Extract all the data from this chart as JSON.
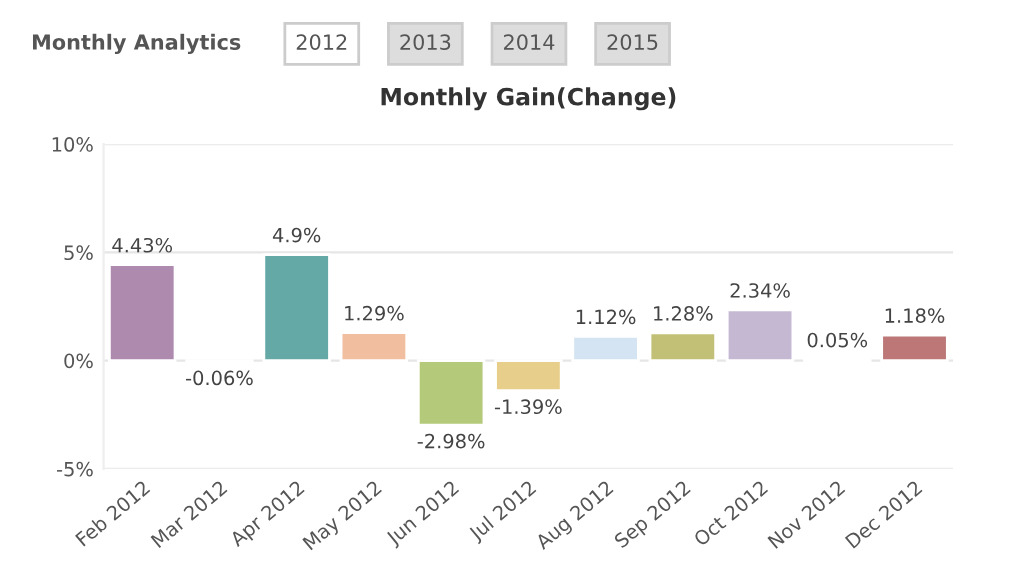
{
  "chart_data": {
    "type": "bar",
    "title": "Monthly Gain(Change)",
    "annotations": [
      "Monthly Analytics",
      "2012",
      "2013",
      "2014",
      "2015"
    ],
    "categories": [
      "Feb 2012",
      "Mar 2012",
      "Apr 2012",
      "May 2012",
      "Jun 2012",
      "Jul 2012",
      "Aug 2012",
      "Sep 2012",
      "Oct 2012",
      "Nov 2012",
      "Dec 2012"
    ],
    "values": [
      4.43,
      -0.06,
      4.9,
      1.29,
      -2.98,
      -1.39,
      1.12,
      1.28,
      2.34,
      0.05,
      1.18
    ],
    "value_labels": [
      "4.43%",
      "-0.06%",
      "4.9%",
      "1.29%",
      "-2.98%",
      "-1.39%",
      "1.12%",
      "1.28%",
      "2.34%",
      "0.05%",
      "1.18%"
    ],
    "colors": [
      "#b384b4",
      "#9a9a9a",
      "#5ab4b2",
      "#ffbb92",
      "#bad66c",
      "#f7d57a",
      "#cfe4f7",
      "#cfcc6a",
      "#c3b3d8",
      "#8a8a6a",
      "#c96b6b"
    ],
    "ylim": [
      -5,
      10
    ],
    "yticks": [
      {
        "value": -5,
        "label": "-5%"
      },
      {
        "value": 0,
        "label": "0%"
      },
      {
        "value": 5,
        "label": "5%"
      },
      {
        "value": 10,
        "label": "10%"
      }
    ],
    "grid": "y"
  }
}
